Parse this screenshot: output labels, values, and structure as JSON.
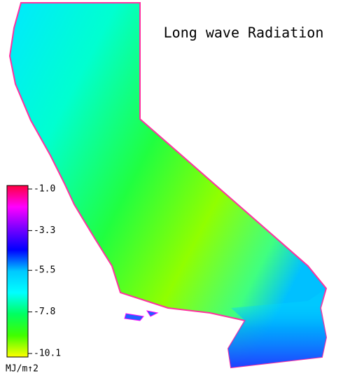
{
  "title": "Long wave Radiation",
  "colorbar": {
    "unit": "MJ/m↑2",
    "lim": [
      -1,
      -10.1
    ],
    "ticks": [
      {
        "value": -1,
        "label": "-1.0"
      },
      -3.3,
      -5.5,
      -7.8,
      -10.1
    ],
    "colors": [
      "#ff0040",
      "#ff00ff",
      "#7a00ff",
      "#0000ff",
      "#00c8ff",
      "#00ffff",
      "#00ff60",
      "#40ff00",
      "#ffff00"
    ]
  }
}
